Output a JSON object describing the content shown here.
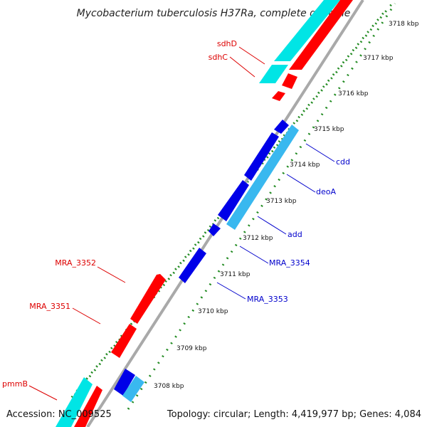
{
  "title": "Mycobacterium tuberculosis H37Ra, complete genome",
  "footer": {
    "accession": "Accession: NC_009525",
    "summary": "Topology: circular; Length: 4,419,977 bp; Genes: 4,084"
  },
  "colors": {
    "forward_gene": "#ff0000",
    "forward_gene_alt": "#00e5e5",
    "reverse_gene": "#0000e8",
    "reverse_gene_alt": "#39b8ef",
    "backbone": "#888888",
    "ticks": "#228b22",
    "label_forward": "#dd0000",
    "label_reverse": "#0000cc"
  },
  "kbp_ticks": [
    "3708 kbp",
    "3709 kbp",
    "3710 kbp",
    "3711 kbp",
    "3712 kbp",
    "3713 kbp",
    "3714 kbp",
    "3715 kbp",
    "3716 kbp",
    "3717 kbp",
    "3718 kbp"
  ],
  "genes": {
    "sdhD": "sdhD",
    "sdhC": "sdhC",
    "MRA_3352": "MRA_3352",
    "MRA_3351": "MRA_3351",
    "pmmB": "pmmB",
    "cdd": "cdd",
    "deoA": "deoA",
    "add": "add",
    "MRA_3354": "MRA_3354",
    "MRA_3353": "MRA_3353"
  }
}
